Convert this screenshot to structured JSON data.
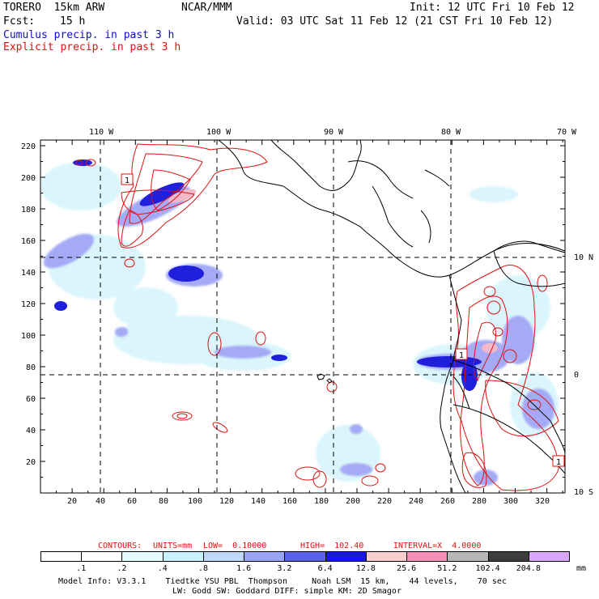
{
  "header": {
    "model": "TORERO  15km ARW",
    "org": "NCAR/MMM",
    "init": "Init: 12 UTC Fri 10 Feb 12",
    "fcst_label": "Fcst:",
    "fcst_value": "15 h",
    "valid": "Valid: 03 UTC Sat 11 Feb 12 (21 CST Fri 10 Feb 12)",
    "line_cumulus": "Cumulus precip. in past 3 h",
    "line_explicit": "Explicit precip. in past 3 h"
  },
  "map": {
    "top_lon_labels": [
      "110 W",
      "100 W",
      "90 W",
      "80 W",
      "70 W"
    ],
    "left_y_ticks": [
      "220",
      "200",
      "180",
      "160",
      "140",
      "120",
      "100",
      "80",
      "60",
      "40",
      "20"
    ],
    "bottom_x_ticks": [
      "20",
      "40",
      "60",
      "80",
      "100",
      "120",
      "140",
      "160",
      "180",
      "200",
      "220",
      "240",
      "260",
      "280",
      "300",
      "320"
    ],
    "right_lat_labels": [
      "10 N",
      "0",
      "10 S"
    ],
    "box_labels": [
      "1",
      "1",
      "1"
    ]
  },
  "contours_info": {
    "contours": "CONTOURS:",
    "units": "UNITS=mm",
    "low": "LOW=  0.10000",
    "high": "HIGH=  102.40",
    "interval": "INTERVAL=X  4.0000"
  },
  "colorbar": {
    "labels": [
      ".1",
      ".2",
      ".4",
      ".8",
      "1.6",
      "3.2",
      "6.4",
      "12.8",
      "25.6",
      "51.2",
      "102.4",
      "204.8"
    ],
    "unit": "mm",
    "colors": [
      "#ffffff",
      "#ffffff",
      "#e4fbff",
      "#c6f1fd",
      "#c0d8fa",
      "#9aa4f6",
      "#5b62ea",
      "#1818e0",
      "#f6cece",
      "#f58fb8",
      "#b7b7b7",
      "#3c3c3c",
      "#d7a6f6"
    ]
  },
  "footer": {
    "line1": "Model Info: V3.3.1    Tiedtke YSU PBL  Thompson     Noah LSM  15 km,    44 levels,    70 sec",
    "line2": "LW: Godd SW: Goddard DIFF: simple KM: 2D Smagor"
  }
}
